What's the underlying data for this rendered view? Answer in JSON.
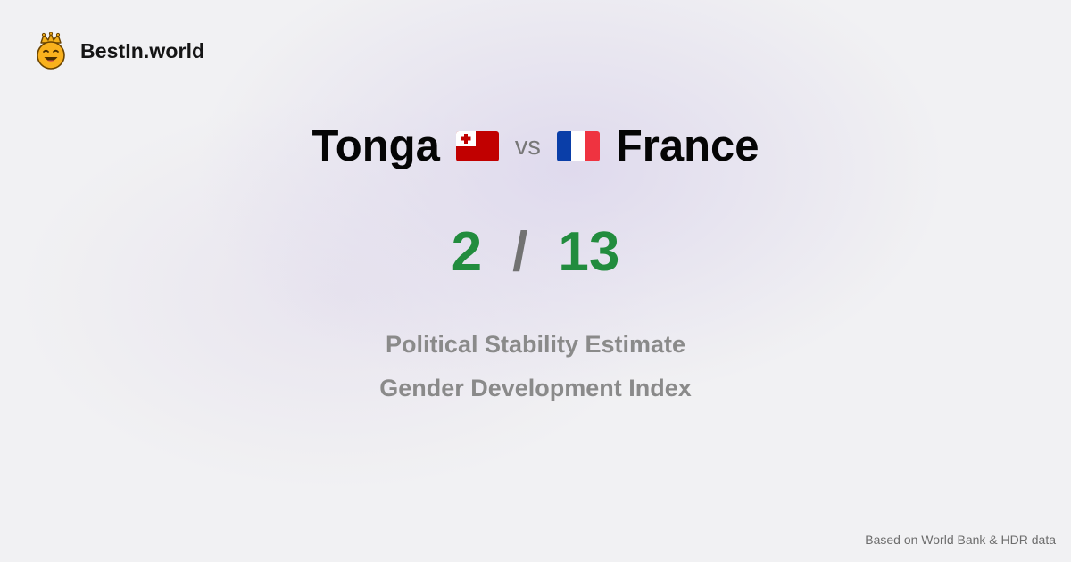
{
  "brand": {
    "name": "BestIn.world",
    "logo_icon": "smiling-crown-face-icon"
  },
  "comparison": {
    "left_country": "Tonga",
    "left_flag_icon": "tonga-flag-icon",
    "vs_label": "vs",
    "right_country": "France",
    "right_flag_icon": "france-flag-icon"
  },
  "scores": {
    "left": "2",
    "separator": "/",
    "right": "13"
  },
  "metrics": [
    "Political Stability Estimate",
    "Gender Development Index"
  ],
  "footer": {
    "source": "Based on World Bank & HDR data"
  },
  "colors": {
    "score_green": "#228c3e",
    "slash_gray": "#727272",
    "metric_gray": "#8a8a8a",
    "tonga_red": "#c10000",
    "france_blue": "#0a3ea8",
    "france_red": "#ef3340"
  }
}
